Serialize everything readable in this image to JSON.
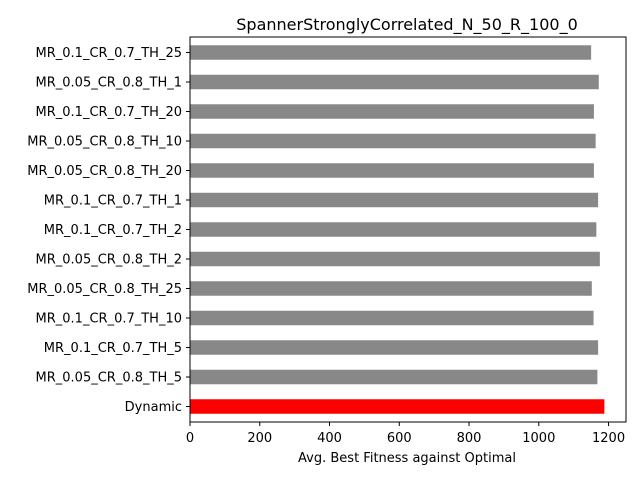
{
  "chart_data": {
    "type": "bar",
    "orientation": "horizontal",
    "title": "SpannerStronglyCorrelated_N_50_R_100_0",
    "xlabel": "Avg. Best Fitness against Optimal",
    "ylabel": "",
    "xlim": [
      0,
      1250
    ],
    "xticks": [
      0,
      200,
      400,
      600,
      800,
      1000,
      1200
    ],
    "grid": false,
    "categories": [
      "MR_0.1_CR_0.7_TH_25",
      "MR_0.05_CR_0.8_TH_1",
      "MR_0.1_CR_0.7_TH_20",
      "MR_0.05_CR_0.8_TH_10",
      "MR_0.05_CR_0.8_TH_20",
      "MR_0.1_CR_0.7_TH_1",
      "MR_0.1_CR_0.7_TH_2",
      "MR_0.05_CR_0.8_TH_2",
      "MR_0.05_CR_0.8_TH_25",
      "MR_0.1_CR_0.7_TH_10",
      "MR_0.1_CR_0.7_TH_5",
      "MR_0.05_CR_0.8_TH_5",
      "Dynamic"
    ],
    "values": [
      1150,
      1172,
      1158,
      1163,
      1158,
      1170,
      1165,
      1175,
      1152,
      1157,
      1170,
      1168,
      1188
    ],
    "colors": [
      "#888888",
      "#888888",
      "#888888",
      "#888888",
      "#888888",
      "#888888",
      "#888888",
      "#888888",
      "#888888",
      "#888888",
      "#888888",
      "#888888",
      "#ff0000"
    ]
  }
}
